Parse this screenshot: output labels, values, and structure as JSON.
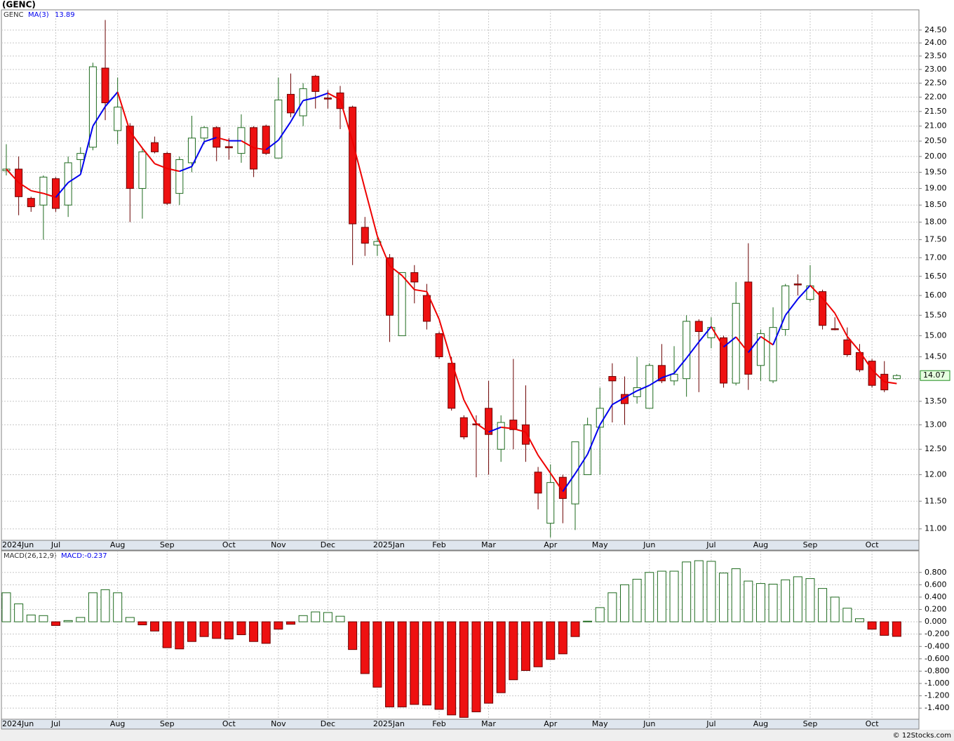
{
  "chart_data": [
    {
      "type": "candlestick",
      "title": "(GENC)",
      "name": "GENC",
      "log_scale": true,
      "grid": true,
      "up_color": "#ffffff",
      "up_border": "#1f6b1f",
      "down_color": "#ee1111",
      "down_border": "#6b0000",
      "categories": [
        "2024Jun",
        null,
        null,
        null,
        "Jul",
        null,
        null,
        null,
        null,
        "Aug",
        null,
        null,
        null,
        "Sep",
        null,
        null,
        null,
        null,
        "Oct",
        null,
        null,
        null,
        "Nov",
        null,
        null,
        null,
        "Dec",
        null,
        null,
        null,
        "2025Jan",
        null,
        null,
        null,
        null,
        "Feb",
        null,
        null,
        null,
        "Mar",
        null,
        null,
        null,
        null,
        "Apr",
        null,
        null,
        null,
        "May",
        null,
        null,
        null,
        "Jun",
        null,
        null,
        null,
        null,
        "Jul",
        null,
        null,
        null,
        "Aug",
        null,
        null,
        null,
        "Sep",
        null,
        null,
        null,
        null,
        "Oct",
        null,
        null
      ],
      "open": [
        19.55,
        19.6,
        18.7,
        18.5,
        19.3,
        18.5,
        19.9,
        20.3,
        23.05,
        20.85,
        21.0,
        19.0,
        20.45,
        20.1,
        18.85,
        19.8,
        20.6,
        20.95,
        20.32,
        20.1,
        20.95,
        21.0,
        19.95,
        22.1,
        21.35,
        22.75,
        21.97,
        22.15,
        21.65,
        17.85,
        17.35,
        17.0,
        15.0,
        16.6,
        16.0,
        15.05,
        14.35,
        13.15,
        13.02,
        13.35,
        12.5,
        13.1,
        13.0,
        12.05,
        11.1,
        11.95,
        11.45,
        12.0,
        12.95,
        14.05,
        13.65,
        13.6,
        13.35,
        14.3,
        13.95,
        14.0,
        15.35,
        14.95,
        14.95,
        13.9,
        16.35,
        14.3,
        13.95,
        15.15,
        16.3,
        15.9,
        16.1,
        15.17,
        14.9,
        14.6,
        14.4,
        14.1,
        14.0
      ],
      "high": [
        20.4,
        20.0,
        18.75,
        19.4,
        19.35,
        20.0,
        20.3,
        23.25,
        24.9,
        22.7,
        21.1,
        20.3,
        20.65,
        20.15,
        20.0,
        21.35,
        21.0,
        21.0,
        20.6,
        21.4,
        21.0,
        21.05,
        22.7,
        22.85,
        22.5,
        22.8,
        22.25,
        22.4,
        21.7,
        18.15,
        17.55,
        17.1,
        16.6,
        16.8,
        16.3,
        15.1,
        14.5,
        13.2,
        13.2,
        13.95,
        13.2,
        14.45,
        13.85,
        12.15,
        12.2,
        12.0,
        12.65,
        13.15,
        13.8,
        14.35,
        14.05,
        14.5,
        14.35,
        14.8,
        14.75,
        15.5,
        15.4,
        15.45,
        15.0,
        16.35,
        17.4,
        15.15,
        15.7,
        16.3,
        16.55,
        16.8,
        16.15,
        15.45,
        15.2,
        14.8,
        14.45,
        14.4,
        14.1
      ],
      "low": [
        19.4,
        18.2,
        18.3,
        17.5,
        18.3,
        18.15,
        19.5,
        20.2,
        21.2,
        20.4,
        18.0,
        18.1,
        20.1,
        18.5,
        18.5,
        19.5,
        20.4,
        19.85,
        19.9,
        19.8,
        19.35,
        20.05,
        19.95,
        21.3,
        21.0,
        21.6,
        21.6,
        20.9,
        16.8,
        17.05,
        17.05,
        14.85,
        15.0,
        15.8,
        15.15,
        14.45,
        13.3,
        12.7,
        11.95,
        12.0,
        12.25,
        12.5,
        12.25,
        11.35,
        10.85,
        11.1,
        10.98,
        12.0,
        12.0,
        13.05,
        13.0,
        13.45,
        13.35,
        13.9,
        13.85,
        13.6,
        13.7,
        14.7,
        13.8,
        13.85,
        13.75,
        13.95,
        13.9,
        15.0,
        16.0,
        15.85,
        15.15,
        15.13,
        14.5,
        14.15,
        13.8,
        13.7,
        13.98
      ],
      "close": [
        19.6,
        18.75,
        18.45,
        19.35,
        18.4,
        19.8,
        20.1,
        23.1,
        21.8,
        21.65,
        19.0,
        20.15,
        20.15,
        18.55,
        19.9,
        20.6,
        20.95,
        20.3,
        20.28,
        20.95,
        19.6,
        20.1,
        21.9,
        21.45,
        22.3,
        22.2,
        21.93,
        21.6,
        17.95,
        17.4,
        17.45,
        15.5,
        16.6,
        16.35,
        15.35,
        14.5,
        13.35,
        12.75,
        13.0,
        12.8,
        13.05,
        12.9,
        12.6,
        11.65,
        11.85,
        11.55,
        12.65,
        13.0,
        13.35,
        13.95,
        13.45,
        13.8,
        14.3,
        13.95,
        14.1,
        15.35,
        15.1,
        15.2,
        13.9,
        15.8,
        14.1,
        15.05,
        15.2,
        16.25,
        16.28,
        16.25,
        15.25,
        15.15,
        14.55,
        14.2,
        13.85,
        13.75,
        14.07
      ],
      "ma": {
        "name": "MA(3)",
        "last": 13.89,
        "up_color": "#0000ee",
        "down_color": "#ee0000",
        "values": [
          19.6,
          19.18,
          18.93,
          18.85,
          18.73,
          19.18,
          19.43,
          21.0,
          21.67,
          22.18,
          20.82,
          20.27,
          19.77,
          19.62,
          19.53,
          19.68,
          20.48,
          20.62,
          20.51,
          20.51,
          20.28,
          20.22,
          20.53,
          21.15,
          21.88,
          21.98,
          22.14,
          21.91,
          20.49,
          18.98,
          17.6,
          16.78,
          16.52,
          16.15,
          16.1,
          15.4,
          14.4,
          13.53,
          13.03,
          12.85,
          12.95,
          12.92,
          12.85,
          12.38,
          12.03,
          11.68,
          12.02,
          12.4,
          13.0,
          13.43,
          13.58,
          13.73,
          13.85,
          14.02,
          14.12,
          14.47,
          14.85,
          15.22,
          14.73,
          14.97,
          14.6,
          14.98,
          14.78,
          15.5,
          15.91,
          16.26,
          15.93,
          15.55,
          14.98,
          14.63,
          14.2,
          13.93,
          13.89
        ]
      },
      "last_price": 14.07,
      "ylim": [
        10.8,
        25.31
      ],
      "yticks": [
        {
          "value": 11,
          "label": "11.00"
        },
        {
          "value": 11.5,
          "label": "11.50"
        },
        {
          "value": 12,
          "label": "12.00"
        },
        {
          "value": 12.5,
          "label": "12.50"
        },
        {
          "value": 13,
          "label": "13.00"
        },
        {
          "value": 13.5,
          "label": "13.50"
        },
        {
          "value": 14,
          "label": "14.00"
        },
        {
          "value": 14.5,
          "label": "14.50"
        },
        {
          "value": 15,
          "label": "15.00"
        },
        {
          "value": 15.5,
          "label": "15.50"
        },
        {
          "value": 16,
          "label": "16.00"
        },
        {
          "value": 16.5,
          "label": "16.50"
        },
        {
          "value": 17,
          "label": "17.00"
        },
        {
          "value": 17.5,
          "label": "17.50"
        },
        {
          "value": 18,
          "label": "18.00"
        },
        {
          "value": 18.5,
          "label": "18.50"
        },
        {
          "value": 19,
          "label": "19.00"
        },
        {
          "value": 19.5,
          "label": "19.50"
        },
        {
          "value": 20,
          "label": "20.00"
        },
        {
          "value": 20.5,
          "label": "20.50"
        },
        {
          "value": 21,
          "label": "21.00"
        },
        {
          "value": 21.5,
          "label": "21.50"
        },
        {
          "value": 22,
          "label": "22.00"
        },
        {
          "value": 22.5,
          "label": "22.50"
        },
        {
          "value": 23,
          "label": "23.00"
        },
        {
          "value": 23.5,
          "label": "23.50"
        },
        {
          "value": 24,
          "label": "24.00"
        },
        {
          "value": 24.5,
          "label": "24.50"
        }
      ]
    },
    {
      "type": "bar",
      "name": "MACD(26,12,9)",
      "legend": "MACD:-0.237",
      "grid": true,
      "up_color": "#ffffff",
      "up_border": "#1f6b1f",
      "down_color": "#ee1111",
      "down_border": "#6b0000",
      "categories": [
        "2024Jun",
        null,
        null,
        null,
        "Jul",
        null,
        null,
        null,
        null,
        "Aug",
        null,
        null,
        null,
        "Sep",
        null,
        null,
        null,
        null,
        "Oct",
        null,
        null,
        null,
        "Nov",
        null,
        null,
        null,
        "Dec",
        null,
        null,
        null,
        "2025Jan",
        null,
        null,
        null,
        null,
        "Feb",
        null,
        null,
        null,
        "Mar",
        null,
        null,
        null,
        null,
        "Apr",
        null,
        null,
        null,
        "May",
        null,
        null,
        null,
        "Jun",
        null,
        null,
        null,
        null,
        "Jul",
        null,
        null,
        null,
        "Aug",
        null,
        null,
        null,
        "Sep",
        null,
        null,
        null,
        null,
        "Oct",
        null,
        null
      ],
      "values": [
        0.47,
        0.29,
        0.11,
        0.1,
        -0.06,
        0.02,
        0.07,
        0.47,
        0.52,
        0.47,
        0.07,
        -0.05,
        -0.15,
        -0.42,
        -0.44,
        -0.32,
        -0.24,
        -0.27,
        -0.28,
        -0.21,
        -0.32,
        -0.35,
        -0.12,
        -0.04,
        0.1,
        0.16,
        0.15,
        0.09,
        -0.45,
        -0.84,
        -1.06,
        -1.38,
        -1.38,
        -1.34,
        -1.35,
        -1.42,
        -1.51,
        -1.55,
        -1.46,
        -1.32,
        -1.15,
        -0.94,
        -0.79,
        -0.73,
        -0.61,
        -0.52,
        -0.24,
        0.01,
        0.23,
        0.47,
        0.6,
        0.69,
        0.8,
        0.82,
        0.82,
        0.97,
        0.99,
        0.98,
        0.79,
        0.86,
        0.66,
        0.62,
        0.61,
        0.68,
        0.73,
        0.7,
        0.54,
        0.4,
        0.22,
        0.05,
        -0.12,
        -0.22,
        -0.237
      ],
      "ylim": [
        -1.58,
        1.15
      ],
      "yticks": [
        {
          "value": 0.8,
          "label": "0.800"
        },
        {
          "value": 0.6,
          "label": "0.600"
        },
        {
          "value": 0.4,
          "label": "0.400"
        },
        {
          "value": 0.2,
          "label": "0.200"
        },
        {
          "value": 0,
          "label": "0.000"
        },
        {
          "value": -0.2,
          "label": "-0.200"
        },
        {
          "value": -0.4,
          "label": "-0.400"
        },
        {
          "value": -0.6,
          "label": "-0.600"
        },
        {
          "value": -0.8,
          "label": "-0.800"
        },
        {
          "value": -1.0,
          "label": "-1.000"
        },
        {
          "value": -1.2,
          "label": "-1.200"
        },
        {
          "value": -1.4,
          "label": "-1.400"
        }
      ]
    }
  ],
  "footer": "© 12Stocks.com"
}
